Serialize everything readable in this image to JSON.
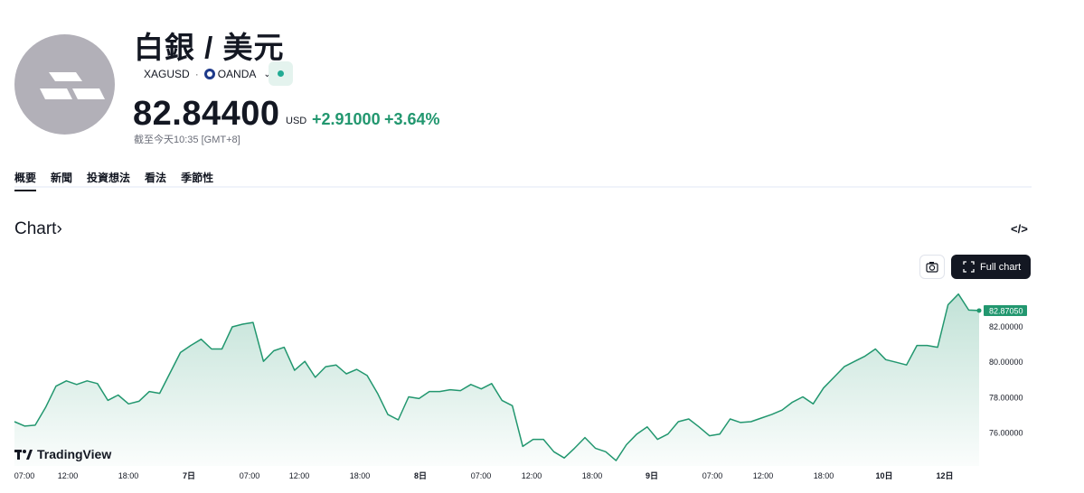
{
  "header": {
    "title": "白銀 / 美元",
    "symbol": "XAGUSD",
    "separator": "·",
    "broker": "OANDA",
    "price": "82.84400",
    "currency": "USD",
    "change": "+2.91000",
    "change_pct": "+3.64%",
    "as_of": "截至今天10:35 [GMT+8]",
    "icons": {
      "logo": "silver-bars-icon",
      "broker": "oanda-icon",
      "dropdown": "chevron-down-icon",
      "status": "market-status-dot"
    },
    "colors": {
      "up": "#22976f",
      "logo_bg": "#b2b0b8"
    }
  },
  "tabs": [
    {
      "label": "概要",
      "active": true
    },
    {
      "label": "新聞",
      "active": false
    },
    {
      "label": "投資想法",
      "active": false
    },
    {
      "label": "看法",
      "active": false
    },
    {
      "label": "季節性",
      "active": false
    }
  ],
  "chart_section": {
    "title": "Chart",
    "chevron": "›",
    "embed_label": "</>",
    "full_chart_label": "Full chart",
    "brand": "TradingView",
    "icons": {
      "camera": "camera-icon",
      "fullscreen": "fullscreen-icon",
      "embed": "code-icon"
    }
  },
  "chart_data": {
    "type": "area",
    "color": "#22976f",
    "xlabels": [
      "07:00",
      "12:00",
      "18:00",
      "7日",
      "07:00",
      "12:00",
      "18:00",
      "8日",
      "07:00",
      "12:00",
      "18:00",
      "9日",
      "07:00",
      "12:00",
      "18:00",
      "10日",
      "12日"
    ],
    "ylabels": [
      "76.00000",
      "78.00000",
      "80.00000",
      "82.00000"
    ],
    "ylim": [
      74.1,
      84.6
    ],
    "last_value_label": "82.87050",
    "series": [
      {
        "values": [
          76.6,
          76.35,
          76.4,
          77.4,
          78.6,
          78.9,
          78.7,
          78.9,
          78.75,
          77.8,
          78.1,
          77.6,
          77.75,
          78.3,
          78.2,
          79.35,
          80.5,
          80.9,
          81.25,
          80.7,
          80.7,
          81.95,
          82.1,
          82.2,
          80.0,
          80.6,
          80.8,
          79.5,
          80.0,
          79.1,
          79.7,
          79.8,
          79.3,
          79.55,
          79.2,
          78.2,
          77.0,
          76.7,
          78.0,
          77.9,
          78.3,
          78.3,
          78.4,
          78.35,
          78.7,
          78.45,
          78.75,
          77.8,
          77.5,
          75.2,
          75.6,
          75.6,
          74.9,
          74.55,
          75.1,
          75.7,
          75.1,
          74.9,
          74.4,
          75.3,
          75.9,
          76.3,
          75.6,
          75.9,
          76.6,
          76.75,
          76.3,
          75.8,
          75.9,
          76.75,
          76.55,
          76.6,
          76.8,
          77.0,
          77.25,
          77.7,
          78.0,
          77.6,
          78.5,
          79.1,
          79.7,
          80.0,
          80.3,
          80.7,
          80.1,
          79.95,
          79.8,
          80.9,
          80.9,
          80.8,
          83.2,
          83.8,
          82.9,
          82.87
        ]
      }
    ]
  }
}
